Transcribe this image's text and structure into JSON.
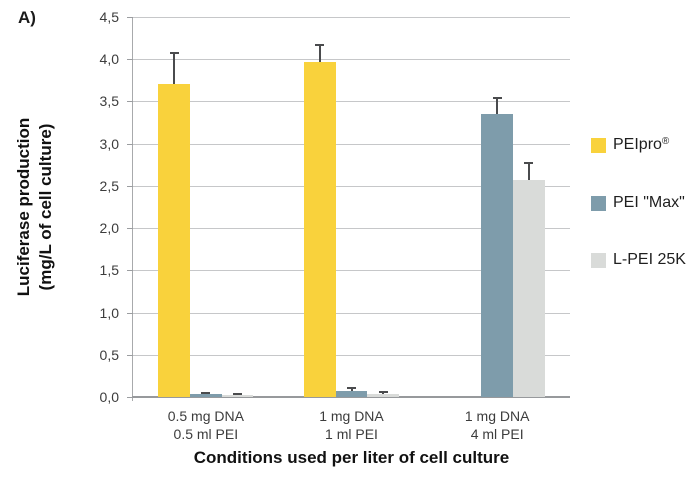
{
  "figure": {
    "panel_label": "A)"
  },
  "chart_data": {
    "type": "bar",
    "title": "",
    "ylabel_line1": "Luciferase production",
    "ylabel_line2": "(mg/L of cell culture)",
    "xlabel": "Conditions used per liter of cell culture",
    "ylim": [
      0,
      4.5
    ],
    "ytick_step": 0.5,
    "ytick_labels": [
      "0,0",
      "0,5",
      "1,0",
      "1,5",
      "2,0",
      "2,5",
      "3,0",
      "3,5",
      "4,0",
      "4,5"
    ],
    "decimal_separator": ",",
    "grid": "horizontal",
    "legend_position": "right",
    "categories": [
      {
        "line1": "0.5 mg DNA",
        "line2": "0.5 ml PEI"
      },
      {
        "line1": "1 mg DNA",
        "line2": "1 ml PEI"
      },
      {
        "line1": "1 mg DNA",
        "line2": "4 ml PEI"
      }
    ],
    "series": [
      {
        "name": "PEIpro®",
        "color": "#f9d23c",
        "values": [
          3.71,
          3.97,
          null
        ],
        "errors": [
          0.36,
          0.2,
          null
        ]
      },
      {
        "name": "PEI \"Max\"",
        "color": "#7e9cab",
        "values": [
          0.03,
          0.07,
          3.35
        ],
        "errors": [
          0.02,
          0.04,
          0.19
        ]
      },
      {
        "name": "L-PEI 25K",
        "color": "#d9dbd9",
        "values": [
          0.02,
          0.04,
          2.57
        ],
        "errors": [
          0.01,
          0.02,
          0.2
        ]
      }
    ]
  }
}
